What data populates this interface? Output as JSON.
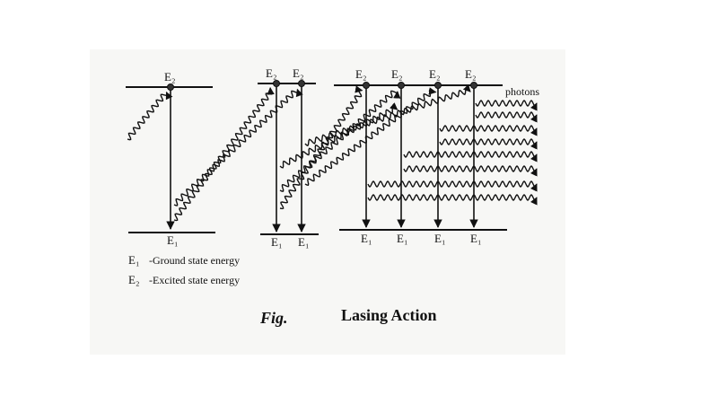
{
  "level_labels": {
    "upper": [
      "E₂",
      "E₂",
      "E₂",
      "E₂",
      "E₂",
      "E₂",
      "E₂"
    ],
    "lower": [
      "E₁",
      "E₁",
      "E₁",
      "E₁",
      "E₁",
      "E₁",
      "E₁"
    ]
  },
  "photons_label": "photons",
  "legend": [
    {
      "symbol": "E₁",
      "text": "-Ground state energy"
    },
    {
      "symbol": "E₂",
      "text": "-Excited state energy"
    }
  ],
  "caption": {
    "prefix": "Fig.",
    "title": "Lasing Action"
  }
}
